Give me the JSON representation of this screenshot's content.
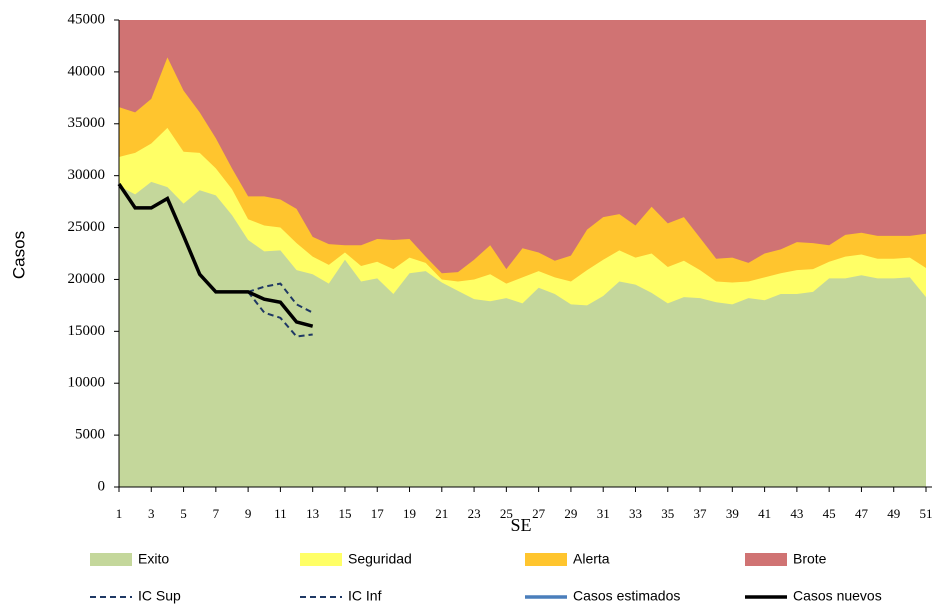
{
  "chart_data": {
    "type": "area",
    "x_label": "SE",
    "y_label": "Casos",
    "x": [
      1,
      2,
      3,
      4,
      5,
      6,
      7,
      8,
      9,
      10,
      11,
      12,
      13,
      14,
      15,
      16,
      17,
      18,
      19,
      20,
      21,
      22,
      23,
      24,
      25,
      26,
      27,
      28,
      29,
      30,
      31,
      32,
      33,
      34,
      35,
      36,
      37,
      38,
      39,
      40,
      41,
      42,
      43,
      44,
      45,
      46,
      47,
      48,
      49,
      50,
      51
    ],
    "xlim": [
      1,
      51
    ],
    "xticks": [
      1,
      3,
      5,
      7,
      9,
      11,
      13,
      15,
      17,
      19,
      21,
      23,
      25,
      27,
      29,
      31,
      33,
      35,
      37,
      39,
      41,
      43,
      45,
      47,
      49,
      51
    ],
    "ylim": [
      0,
      45000
    ],
    "yticks": [
      0,
      5000,
      10000,
      15000,
      20000,
      25000,
      30000,
      35000,
      40000,
      45000
    ],
    "series": [
      {
        "name": "Exito",
        "type": "area",
        "color": "#c4d79b",
        "values": [
          29000,
          28200,
          29400,
          28900,
          27300,
          28600,
          28100,
          26200,
          23800,
          22700,
          22800,
          20900,
          20500,
          19600,
          21900,
          19800,
          20100,
          18600,
          20600,
          20800,
          19700,
          18900,
          18100,
          17900,
          18200,
          17700,
          19200,
          18600,
          17600,
          17500,
          18400,
          19800,
          19500,
          18700,
          17700,
          18300,
          18200,
          17800,
          17600,
          18200,
          18000,
          18600,
          18600,
          18800,
          20100,
          20100,
          20400,
          20100,
          20100,
          20200,
          18300
        ]
      },
      {
        "name": "Seguridad",
        "type": "area",
        "color": "#ffff66",
        "values": [
          31800,
          32200,
          33100,
          34600,
          32300,
          32200,
          30700,
          28700,
          25800,
          25200,
          25000,
          23500,
          22200,
          21400,
          22600,
          21300,
          21700,
          21000,
          22100,
          21600,
          20000,
          19800,
          20000,
          20500,
          19600,
          20200,
          20800,
          20200,
          19800,
          20900,
          21900,
          22800,
          22100,
          22500,
          21200,
          21800,
          20900,
          19800,
          19700,
          19800,
          20200,
          20600,
          20900,
          21000,
          21700,
          22200,
          22400,
          22000,
          22000,
          22100,
          21100
        ]
      },
      {
        "name": "Alerta",
        "type": "area",
        "color": "#ffc52e",
        "values": [
          36600,
          36100,
          37400,
          41400,
          38200,
          36100,
          33600,
          30700,
          28000,
          28000,
          27700,
          26800,
          24100,
          23400,
          23300,
          23300,
          23900,
          23800,
          23900,
          22200,
          20600,
          20700,
          21900,
          23300,
          21000,
          23000,
          22600,
          21800,
          22300,
          24800,
          26000,
          26300,
          25200,
          27000,
          25400,
          26000,
          24000,
          22000,
          22100,
          21600,
          22500,
          22900,
          23600,
          23500,
          23300,
          24300,
          24500,
          24200,
          24200,
          24200,
          24400
        ]
      },
      {
        "name": "Brote",
        "type": "area",
        "color": "#d07373",
        "values": [
          45000,
          45000,
          45000,
          45000,
          45000,
          45000,
          45000,
          45000,
          45000,
          45000,
          45000,
          45000,
          45000,
          45000,
          45000,
          45000,
          45000,
          45000,
          45000,
          45000,
          45000,
          45000,
          45000,
          45000,
          45000,
          45000,
          45000,
          45000,
          45000,
          45000,
          45000,
          45000,
          45000,
          45000,
          45000,
          45000,
          45000,
          45000,
          45000,
          45000,
          45000,
          45000,
          45000,
          45000,
          45000,
          45000,
          45000,
          45000,
          45000,
          45000,
          45000
        ]
      },
      {
        "name": "IC Sup",
        "type": "line",
        "color": "#1f3864",
        "dashed": true,
        "values": [
          null,
          null,
          null,
          null,
          null,
          null,
          null,
          null,
          18800,
          19300,
          19600,
          17600,
          16800,
          null,
          null,
          null,
          null,
          null,
          null,
          null,
          null,
          null,
          null,
          null,
          null,
          null,
          null,
          null,
          null,
          null,
          null,
          null,
          null,
          null,
          null,
          null,
          null,
          null,
          null,
          null,
          null,
          null,
          null,
          null,
          null,
          null,
          null,
          null,
          null,
          null,
          null
        ]
      },
      {
        "name": "IC Inf",
        "type": "line",
        "color": "#1f3864",
        "dashed": true,
        "values": [
          null,
          null,
          null,
          null,
          null,
          null,
          null,
          null,
          18800,
          16800,
          16300,
          14500,
          14700,
          null,
          null,
          null,
          null,
          null,
          null,
          null,
          null,
          null,
          null,
          null,
          null,
          null,
          null,
          null,
          null,
          null,
          null,
          null,
          null,
          null,
          null,
          null,
          null,
          null,
          null,
          null,
          null,
          null,
          null,
          null,
          null,
          null,
          null,
          null,
          null,
          null,
          null
        ]
      },
      {
        "name": "Casos estimados",
        "type": "line",
        "color": "#4a7ebb",
        "dashed": false,
        "values": [
          null,
          null,
          null,
          null,
          null,
          null,
          null,
          null,
          null,
          null,
          null,
          null,
          null,
          null,
          null,
          null,
          null,
          null,
          null,
          null,
          null,
          null,
          null,
          null,
          null,
          null,
          null,
          null,
          null,
          null,
          null,
          null,
          null,
          null,
          null,
          null,
          null,
          null,
          null,
          null,
          null,
          null,
          null,
          null,
          null,
          null,
          null,
          null,
          null,
          null,
          null
        ]
      },
      {
        "name": "Casos nuevos",
        "type": "line",
        "color": "#000000",
        "dashed": false,
        "values": [
          29200,
          26900,
          26900,
          27800,
          24200,
          20500,
          18800,
          18800,
          18800,
          18100,
          17800,
          15900,
          15500,
          null,
          null,
          null,
          null,
          null,
          null,
          null,
          null,
          null,
          null,
          null,
          null,
          null,
          null,
          null,
          null,
          null,
          null,
          null,
          null,
          null,
          null,
          null,
          null,
          null,
          null,
          null,
          null,
          null,
          null,
          null,
          null,
          null,
          null,
          null,
          null,
          null,
          null
        ]
      }
    ]
  }
}
